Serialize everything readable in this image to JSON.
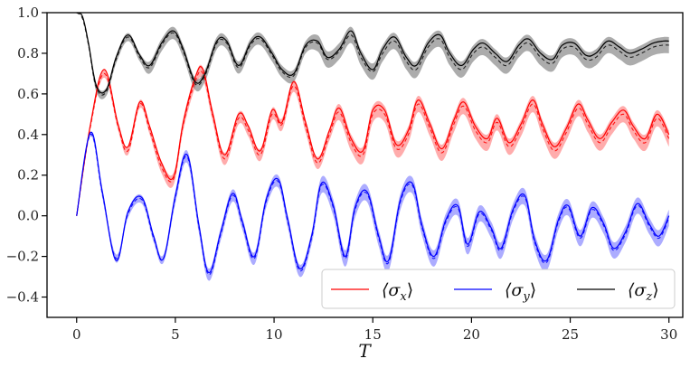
{
  "chart_data": {
    "type": "line",
    "title": "",
    "xlabel": "T",
    "ylabel": "",
    "xlim": [
      -1.5,
      30.7
    ],
    "ylim": [
      -0.5,
      1.0
    ],
    "xticks": [
      0,
      5,
      10,
      15,
      20,
      25,
      30
    ],
    "xtick_labels": [
      "0",
      "5",
      "10",
      "15",
      "20",
      "25",
      "30"
    ],
    "yticks": [
      -0.4,
      -0.2,
      0.0,
      0.2,
      0.4,
      0.6,
      0.8,
      1.0
    ],
    "ytick_labels": [
      "−0.4",
      "−0.2",
      "0.0",
      "0.2",
      "0.4",
      "0.6",
      "0.8",
      "1.0"
    ],
    "grid": false,
    "legend_position": "lower-right",
    "legend": [
      {
        "label": "⟨σx⟩",
        "main": "⟨σ",
        "sub": "x",
        "close": "⟩",
        "color": "#ff0000"
      },
      {
        "label": "⟨σy⟩",
        "main": "⟨σ",
        "sub": "y",
        "close": "⟩",
        "color": "#0000ff"
      },
      {
        "label": "⟨σz⟩",
        "main": "⟨σ",
        "sub": "z",
        "close": "⟩",
        "color": "#000000"
      }
    ],
    "series": [
      {
        "name": "⟨σx⟩",
        "color": "#ff0000",
        "band_color": "#ff8080",
        "x": [
          0,
          0.7,
          1.4,
          2.1,
          2.6,
          3.2,
          3.7,
          4.3,
          4.9,
          5.4,
          6.0,
          6.4,
          6.9,
          7.5,
          8.2,
          8.7,
          9.3,
          9.9,
          10.4,
          11.0,
          11.6,
          12.2,
          12.8,
          13.3,
          13.9,
          14.5,
          15.0,
          15.6,
          16.2,
          16.8,
          17.3,
          17.9,
          18.5,
          19.1,
          19.6,
          20.2,
          20.8,
          21.3,
          21.9,
          22.5,
          23.1,
          23.6,
          24.2,
          24.8,
          25.4,
          25.9,
          26.5,
          27.1,
          27.7,
          28.2,
          28.8,
          29.4,
          30.0
        ],
        "y": [
          0.0,
          0.45,
          0.72,
          0.45,
          0.34,
          0.56,
          0.44,
          0.26,
          0.19,
          0.46,
          0.68,
          0.72,
          0.5,
          0.3,
          0.5,
          0.44,
          0.32,
          0.52,
          0.46,
          0.66,
          0.46,
          0.28,
          0.42,
          0.53,
          0.38,
          0.32,
          0.52,
          0.52,
          0.35,
          0.42,
          0.57,
          0.45,
          0.33,
          0.47,
          0.56,
          0.44,
          0.38,
          0.48,
          0.36,
          0.45,
          0.57,
          0.45,
          0.34,
          0.43,
          0.55,
          0.47,
          0.38,
          0.46,
          0.52,
          0.44,
          0.38,
          0.5,
          0.4
        ],
        "mean": [
          0.0,
          0.44,
          0.7,
          0.44,
          0.32,
          0.55,
          0.42,
          0.24,
          0.18,
          0.45,
          0.66,
          0.7,
          0.49,
          0.28,
          0.48,
          0.42,
          0.3,
          0.5,
          0.45,
          0.64,
          0.44,
          0.26,
          0.4,
          0.51,
          0.36,
          0.3,
          0.5,
          0.5,
          0.33,
          0.4,
          0.55,
          0.43,
          0.31,
          0.45,
          0.54,
          0.42,
          0.36,
          0.46,
          0.34,
          0.43,
          0.55,
          0.43,
          0.32,
          0.41,
          0.53,
          0.45,
          0.36,
          0.44,
          0.5,
          0.42,
          0.36,
          0.48,
          0.38
        ],
        "band": [
          0.0,
          0.01,
          0.02,
          0.02,
          0.02,
          0.02,
          0.02,
          0.03,
          0.03,
          0.03,
          0.03,
          0.03,
          0.03,
          0.03,
          0.03,
          0.03,
          0.03,
          0.03,
          0.03,
          0.03,
          0.03,
          0.03,
          0.03,
          0.04,
          0.04,
          0.04,
          0.04,
          0.04,
          0.04,
          0.04,
          0.04,
          0.04,
          0.04,
          0.04,
          0.04,
          0.04,
          0.04,
          0.04,
          0.04,
          0.04,
          0.04,
          0.04,
          0.04,
          0.04,
          0.04,
          0.04,
          0.04,
          0.04,
          0.04,
          0.04,
          0.04,
          0.04,
          0.04
        ]
      },
      {
        "name": "⟨σy⟩",
        "color": "#0000ff",
        "band_color": "#7f7fff",
        "x": [
          0,
          0.7,
          1.3,
          2.0,
          2.6,
          3.3,
          3.9,
          4.4,
          5.0,
          5.6,
          6.2,
          6.7,
          7.3,
          7.9,
          8.4,
          9.0,
          9.6,
          10.2,
          10.7,
          11.3,
          11.9,
          12.4,
          13.0,
          13.6,
          14.1,
          14.7,
          15.3,
          15.8,
          16.4,
          17.0,
          17.5,
          18.1,
          18.7,
          19.3,
          19.8,
          20.4,
          21.0,
          21.5,
          22.1,
          22.7,
          23.2,
          23.8,
          24.4,
          24.9,
          25.5,
          26.1,
          26.7,
          27.2,
          27.8,
          28.4,
          29.0,
          29.5,
          30.0
        ],
        "y": [
          0.0,
          0.41,
          0.12,
          -0.22,
          0.02,
          0.09,
          -0.1,
          -0.21,
          0.1,
          0.3,
          -0.05,
          -0.28,
          -0.08,
          0.11,
          -0.03,
          -0.2,
          0.08,
          0.18,
          -0.02,
          -0.26,
          -0.1,
          0.16,
          0.05,
          -0.2,
          0.04,
          0.12,
          -0.1,
          -0.22,
          0.08,
          0.16,
          -0.05,
          -0.2,
          -0.02,
          0.05,
          -0.14,
          0.02,
          -0.06,
          -0.16,
          0.03,
          0.1,
          -0.12,
          -0.22,
          -0.02,
          0.05,
          -0.1,
          0.04,
          -0.04,
          -0.16,
          -0.08,
          0.06,
          -0.04,
          -0.1,
          0.0
        ],
        "mean": [
          0.0,
          0.4,
          0.11,
          -0.21,
          0.01,
          0.08,
          -0.11,
          -0.21,
          0.09,
          0.29,
          -0.06,
          -0.29,
          -0.09,
          0.1,
          -0.04,
          -0.21,
          0.07,
          0.17,
          -0.03,
          -0.27,
          -0.11,
          0.15,
          0.04,
          -0.21,
          0.03,
          0.11,
          -0.11,
          -0.23,
          0.07,
          0.15,
          -0.06,
          -0.21,
          -0.03,
          0.04,
          -0.15,
          0.01,
          -0.07,
          -0.17,
          0.02,
          0.09,
          -0.13,
          -0.23,
          -0.03,
          0.04,
          -0.11,
          0.03,
          -0.05,
          -0.17,
          -0.09,
          0.05,
          -0.05,
          -0.11,
          -0.01
        ],
        "band": [
          0.0,
          0.01,
          0.02,
          0.02,
          0.02,
          0.02,
          0.02,
          0.02,
          0.03,
          0.03,
          0.03,
          0.03,
          0.03,
          0.03,
          0.03,
          0.03,
          0.03,
          0.03,
          0.03,
          0.03,
          0.03,
          0.04,
          0.04,
          0.04,
          0.04,
          0.04,
          0.04,
          0.04,
          0.04,
          0.04,
          0.04,
          0.04,
          0.04,
          0.04,
          0.04,
          0.04,
          0.04,
          0.04,
          0.04,
          0.04,
          0.04,
          0.04,
          0.04,
          0.04,
          0.04,
          0.04,
          0.04,
          0.04,
          0.04,
          0.04,
          0.04,
          0.04,
          0.04
        ]
      },
      {
        "name": "⟨σz⟩",
        "color": "#000000",
        "band_color": "#808080",
        "x": [
          0,
          0.3,
          0.6,
          1.0,
          1.5,
          2.0,
          2.6,
          3.2,
          3.7,
          4.3,
          4.9,
          5.4,
          6.0,
          6.5,
          7.1,
          7.6,
          8.2,
          8.8,
          9.3,
          9.9,
          10.4,
          11.0,
          11.6,
          12.2,
          12.7,
          13.3,
          13.9,
          14.4,
          15.0,
          15.5,
          16.1,
          16.7,
          17.2,
          17.8,
          18.4,
          18.9,
          19.5,
          20.1,
          20.6,
          21.2,
          21.8,
          22.4,
          22.9,
          23.5,
          24.1,
          24.6,
          25.2,
          25.8,
          26.3,
          26.9,
          27.5,
          28.0,
          28.6,
          29.2,
          29.7,
          30.0
        ],
        "y": [
          1.0,
          0.98,
          0.85,
          0.64,
          0.62,
          0.78,
          0.89,
          0.79,
          0.74,
          0.85,
          0.91,
          0.82,
          0.66,
          0.7,
          0.86,
          0.86,
          0.74,
          0.85,
          0.88,
          0.8,
          0.72,
          0.7,
          0.84,
          0.86,
          0.78,
          0.82,
          0.91,
          0.8,
          0.72,
          0.82,
          0.88,
          0.78,
          0.74,
          0.85,
          0.89,
          0.8,
          0.74,
          0.82,
          0.85,
          0.8,
          0.76,
          0.84,
          0.87,
          0.8,
          0.77,
          0.84,
          0.85,
          0.79,
          0.8,
          0.86,
          0.83,
          0.8,
          0.82,
          0.85,
          0.86,
          0.86
        ],
        "mean": [
          1.0,
          0.97,
          0.84,
          0.63,
          0.61,
          0.77,
          0.88,
          0.78,
          0.73,
          0.84,
          0.9,
          0.81,
          0.65,
          0.69,
          0.85,
          0.85,
          0.73,
          0.84,
          0.87,
          0.79,
          0.71,
          0.69,
          0.83,
          0.85,
          0.77,
          0.81,
          0.89,
          0.78,
          0.71,
          0.8,
          0.86,
          0.76,
          0.72,
          0.83,
          0.87,
          0.78,
          0.72,
          0.8,
          0.83,
          0.78,
          0.74,
          0.82,
          0.85,
          0.78,
          0.75,
          0.82,
          0.83,
          0.77,
          0.78,
          0.84,
          0.81,
          0.78,
          0.8,
          0.83,
          0.84,
          0.84
        ],
        "band": [
          0.0,
          0.0,
          0.01,
          0.02,
          0.02,
          0.02,
          0.02,
          0.02,
          0.03,
          0.03,
          0.03,
          0.03,
          0.03,
          0.03,
          0.03,
          0.03,
          0.03,
          0.03,
          0.03,
          0.03,
          0.03,
          0.03,
          0.03,
          0.04,
          0.04,
          0.04,
          0.04,
          0.04,
          0.04,
          0.04,
          0.04,
          0.04,
          0.04,
          0.04,
          0.04,
          0.04,
          0.04,
          0.04,
          0.04,
          0.04,
          0.04,
          0.04,
          0.04,
          0.04,
          0.04,
          0.04,
          0.04,
          0.04,
          0.04,
          0.04,
          0.04,
          0.04,
          0.04,
          0.04,
          0.04,
          0.04
        ]
      }
    ]
  }
}
